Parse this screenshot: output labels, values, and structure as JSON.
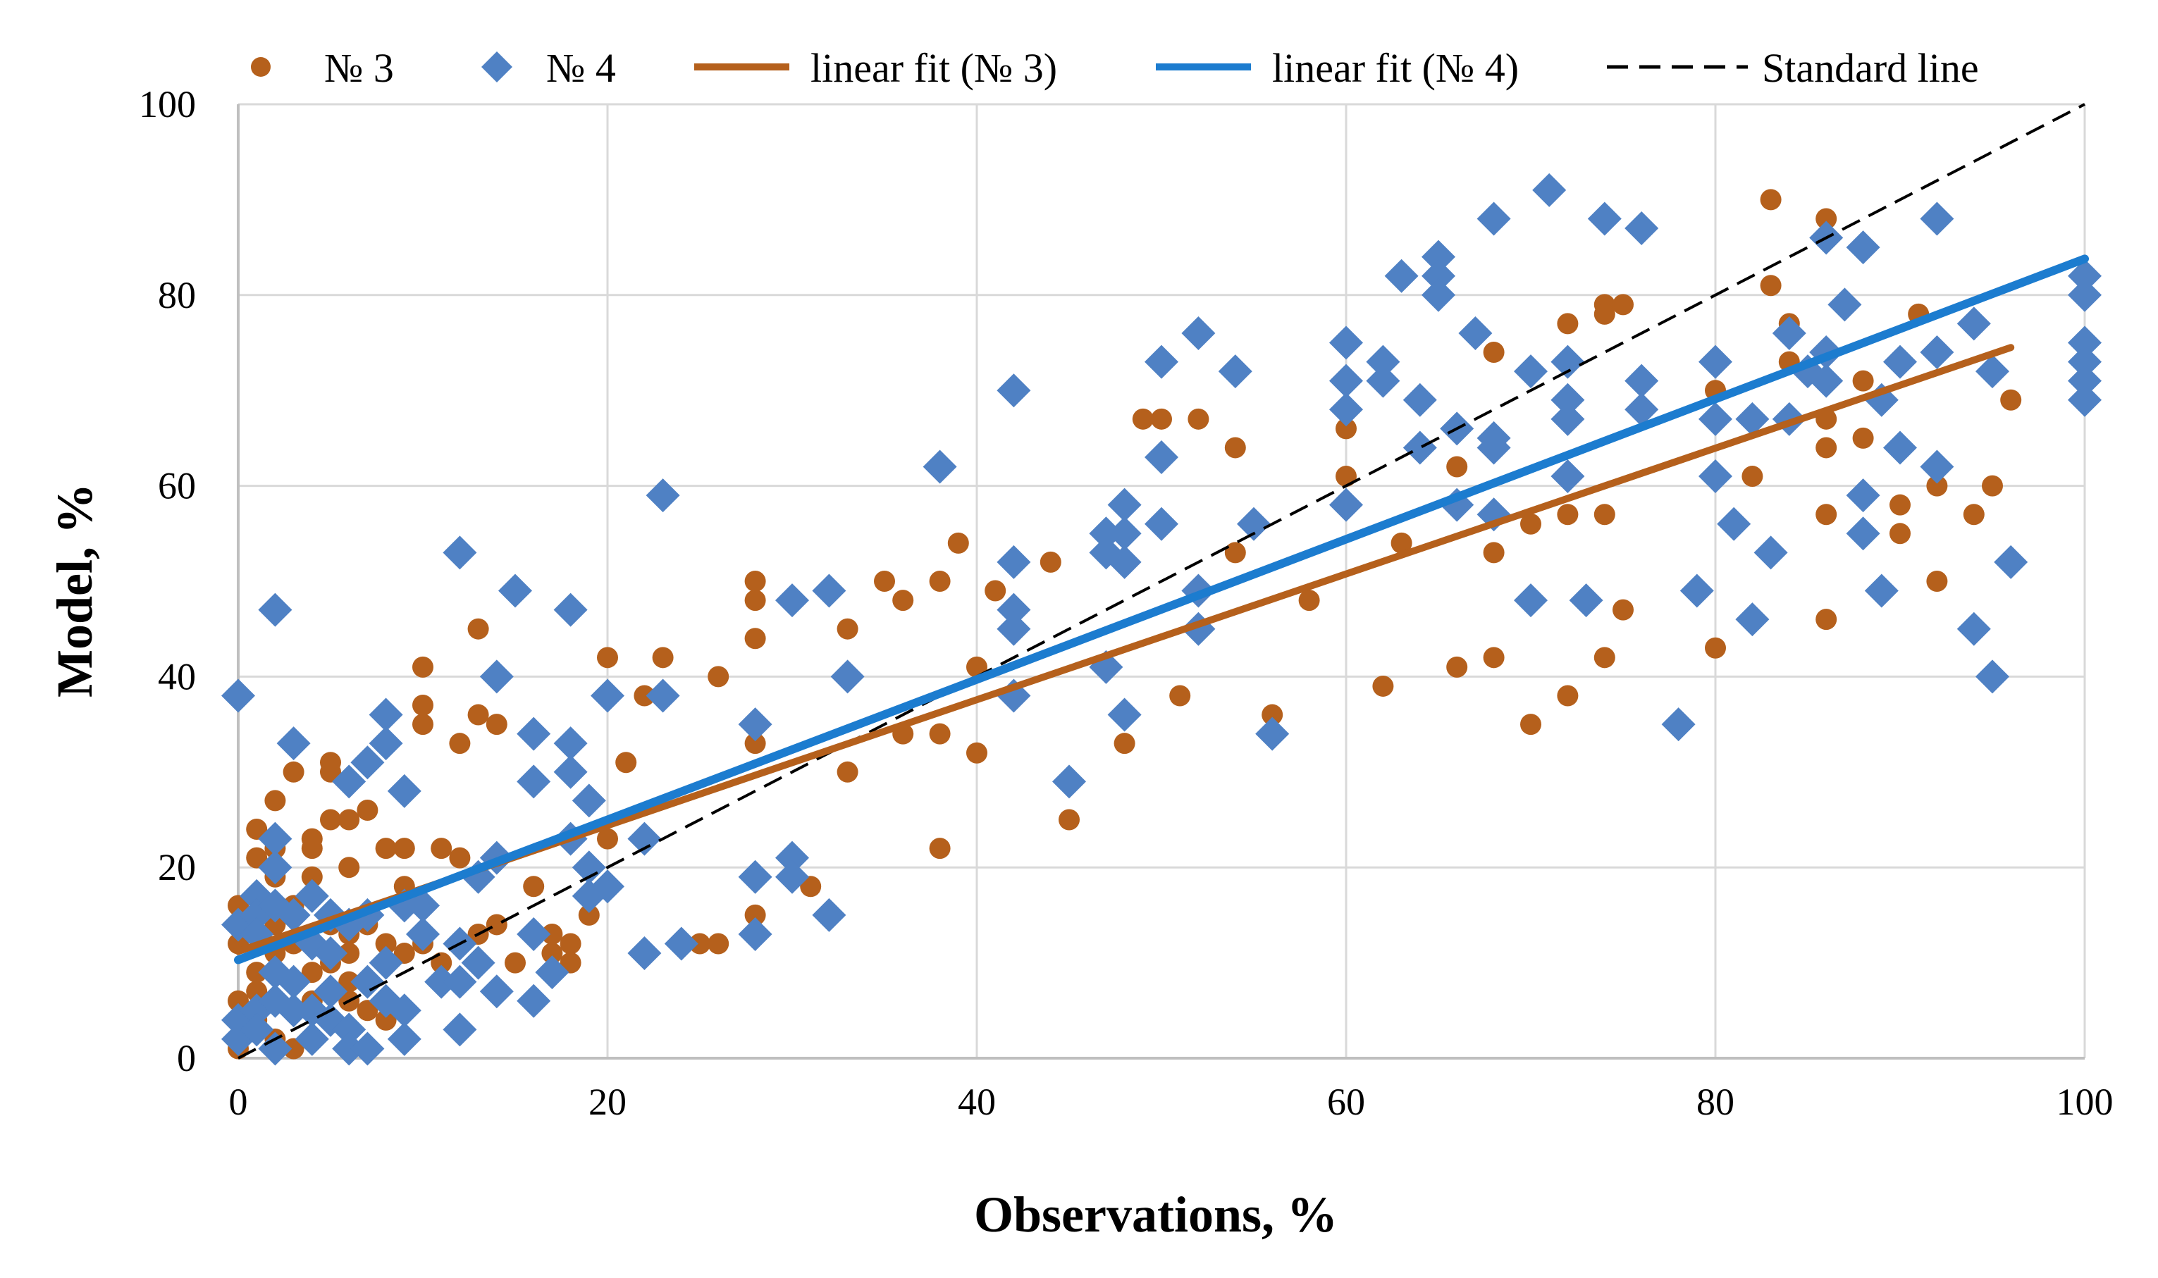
{
  "chart_data": {
    "type": "scatter",
    "title": "",
    "xlabel": "Observations, %",
    "ylabel": "Model, %",
    "xlim": [
      0,
      100
    ],
    "ylim": [
      0,
      100
    ],
    "xticks": [
      0,
      20,
      40,
      60,
      80,
      100
    ],
    "yticks": [
      0,
      20,
      40,
      60,
      80,
      100
    ],
    "grid": true,
    "legend_position": "top",
    "colors": {
      "series3": "#B5601C",
      "series4": "#4F81C4",
      "fit3": "#B5601C",
      "fit4": "#1C7CCF",
      "standard": "#000000",
      "grid": "#D9D9D9",
      "axis": "#BFBFBF"
    },
    "legend": {
      "s3": "№ 3",
      "s4": "№ 4",
      "fit3": "linear fit (№ 3)",
      "fit4": "linear fit (№ 4)",
      "standard": "Standard line"
    },
    "series": [
      {
        "name": "№ 3",
        "marker": "circle",
        "points": [
          [
            0,
            16
          ],
          [
            0,
            12
          ],
          [
            0,
            6
          ],
          [
            0,
            1
          ],
          [
            1,
            24
          ],
          [
            1,
            21
          ],
          [
            1,
            15
          ],
          [
            1,
            9
          ],
          [
            1,
            7
          ],
          [
            1,
            4
          ],
          [
            2,
            27
          ],
          [
            2,
            22
          ],
          [
            2,
            19
          ],
          [
            2,
            14
          ],
          [
            2,
            11
          ],
          [
            2,
            6
          ],
          [
            2,
            2
          ],
          [
            3,
            30
          ],
          [
            3,
            16
          ],
          [
            3,
            12
          ],
          [
            3,
            8
          ],
          [
            3,
            5
          ],
          [
            3,
            1
          ],
          [
            4,
            23
          ],
          [
            4,
            22
          ],
          [
            4,
            19
          ],
          [
            4,
            9
          ],
          [
            4,
            6
          ],
          [
            4,
            2
          ],
          [
            5,
            31
          ],
          [
            5,
            30
          ],
          [
            5,
            25
          ],
          [
            5,
            14
          ],
          [
            5,
            10
          ],
          [
            6,
            25
          ],
          [
            6,
            20
          ],
          [
            6,
            13
          ],
          [
            6,
            11
          ],
          [
            6,
            8
          ],
          [
            6,
            6
          ],
          [
            7,
            26
          ],
          [
            7,
            14
          ],
          [
            7,
            8
          ],
          [
            7,
            5
          ],
          [
            8,
            22
          ],
          [
            8,
            12
          ],
          [
            8,
            4
          ],
          [
            9,
            22
          ],
          [
            9,
            18
          ],
          [
            9,
            11
          ],
          [
            9,
            5
          ],
          [
            10,
            41
          ],
          [
            10,
            37
          ],
          [
            10,
            35
          ],
          [
            10,
            12
          ],
          [
            11,
            22
          ],
          [
            11,
            10
          ],
          [
            12,
            33
          ],
          [
            12,
            21
          ],
          [
            12,
            12
          ],
          [
            13,
            45
          ],
          [
            13,
            36
          ],
          [
            13,
            13
          ],
          [
            14,
            35
          ],
          [
            14,
            14
          ],
          [
            15,
            10
          ],
          [
            16,
            18
          ],
          [
            17,
            13
          ],
          [
            17,
            11
          ],
          [
            18,
            12
          ],
          [
            18,
            10
          ],
          [
            19,
            15
          ],
          [
            20,
            42
          ],
          [
            20,
            23
          ],
          [
            21,
            31
          ],
          [
            22,
            38
          ],
          [
            23,
            42
          ],
          [
            25,
            12
          ],
          [
            26,
            40
          ],
          [
            26,
            12
          ],
          [
            28,
            50
          ],
          [
            28,
            48
          ],
          [
            28,
            44
          ],
          [
            28,
            33
          ],
          [
            28,
            15
          ],
          [
            30,
            48
          ],
          [
            31,
            18
          ],
          [
            33,
            45
          ],
          [
            33,
            30
          ],
          [
            35,
            50
          ],
          [
            36,
            48
          ],
          [
            36,
            34
          ],
          [
            38,
            50
          ],
          [
            38,
            34
          ],
          [
            38,
            22
          ],
          [
            39,
            54
          ],
          [
            40,
            41
          ],
          [
            40,
            32
          ],
          [
            41,
            49
          ],
          [
            44,
            52
          ],
          [
            45,
            25
          ],
          [
            48,
            33
          ],
          [
            49,
            67
          ],
          [
            50,
            67
          ],
          [
            51,
            38
          ],
          [
            52,
            67
          ],
          [
            54,
            64
          ],
          [
            54,
            53
          ],
          [
            56,
            36
          ],
          [
            58,
            48
          ],
          [
            60,
            66
          ],
          [
            60,
            61
          ],
          [
            62,
            39
          ],
          [
            63,
            54
          ],
          [
            66,
            62
          ],
          [
            66,
            41
          ],
          [
            68,
            74
          ],
          [
            68,
            53
          ],
          [
            68,
            42
          ],
          [
            70,
            56
          ],
          [
            70,
            35
          ],
          [
            72,
            77
          ],
          [
            72,
            57
          ],
          [
            72,
            38
          ],
          [
            74,
            79
          ],
          [
            74,
            78
          ],
          [
            74,
            57
          ],
          [
            74,
            42
          ],
          [
            75,
            79
          ],
          [
            75,
            47
          ],
          [
            80,
            70
          ],
          [
            80,
            43
          ],
          [
            82,
            61
          ],
          [
            83,
            90
          ],
          [
            83,
            81
          ],
          [
            84,
            73
          ],
          [
            84,
            77
          ],
          [
            86,
            88
          ],
          [
            86,
            67
          ],
          [
            86,
            64
          ],
          [
            86,
            57
          ],
          [
            86,
            46
          ],
          [
            88,
            71
          ],
          [
            88,
            65
          ],
          [
            90,
            58
          ],
          [
            90,
            55
          ],
          [
            91,
            78
          ],
          [
            92,
            60
          ],
          [
            92,
            50
          ],
          [
            94,
            57
          ],
          [
            95,
            60
          ],
          [
            96,
            69
          ]
        ]
      },
      {
        "name": "№ 4",
        "marker": "diamond",
        "points": [
          [
            0,
            38
          ],
          [
            0,
            14
          ],
          [
            0,
            4
          ],
          [
            0,
            2
          ],
          [
            1,
            17
          ],
          [
            1,
            15
          ],
          [
            1,
            13
          ],
          [
            1,
            5
          ],
          [
            1,
            3
          ],
          [
            2,
            47
          ],
          [
            2,
            23
          ],
          [
            2,
            20
          ],
          [
            2,
            16
          ],
          [
            2,
            9
          ],
          [
            2,
            6
          ],
          [
            2,
            1
          ],
          [
            3,
            33
          ],
          [
            3,
            15
          ],
          [
            3,
            8
          ],
          [
            3,
            5
          ],
          [
            4,
            17
          ],
          [
            4,
            12
          ],
          [
            4,
            5
          ],
          [
            4,
            2
          ],
          [
            5,
            15
          ],
          [
            5,
            11
          ],
          [
            5,
            7
          ],
          [
            5,
            4
          ],
          [
            6,
            29
          ],
          [
            6,
            14
          ],
          [
            6,
            3
          ],
          [
            6,
            1
          ],
          [
            7,
            31
          ],
          [
            7,
            15
          ],
          [
            7,
            8
          ],
          [
            7,
            1
          ],
          [
            8,
            36
          ],
          [
            8,
            33
          ],
          [
            8,
            10
          ],
          [
            8,
            6
          ],
          [
            9,
            28
          ],
          [
            9,
            16
          ],
          [
            9,
            5
          ],
          [
            9,
            2
          ],
          [
            10,
            16
          ],
          [
            10,
            13
          ],
          [
            11,
            8
          ],
          [
            12,
            53
          ],
          [
            12,
            12
          ],
          [
            12,
            8
          ],
          [
            12,
            3
          ],
          [
            13,
            19
          ],
          [
            13,
            10
          ],
          [
            14,
            40
          ],
          [
            14,
            21
          ],
          [
            14,
            7
          ],
          [
            15,
            49
          ],
          [
            16,
            34
          ],
          [
            16,
            29
          ],
          [
            16,
            13
          ],
          [
            16,
            6
          ],
          [
            17,
            9
          ],
          [
            18,
            47
          ],
          [
            18,
            33
          ],
          [
            18,
            30
          ],
          [
            18,
            23
          ],
          [
            19,
            27
          ],
          [
            19,
            20
          ],
          [
            19,
            17
          ],
          [
            20,
            38
          ],
          [
            20,
            18
          ],
          [
            22,
            23
          ],
          [
            22,
            11
          ],
          [
            23,
            59
          ],
          [
            23,
            38
          ],
          [
            24,
            12
          ],
          [
            28,
            35
          ],
          [
            28,
            19
          ],
          [
            28,
            13
          ],
          [
            30,
            48
          ],
          [
            30,
            21
          ],
          [
            30,
            19
          ],
          [
            32,
            49
          ],
          [
            32,
            15
          ],
          [
            33,
            40
          ],
          [
            38,
            62
          ],
          [
            42,
            70
          ],
          [
            42,
            52
          ],
          [
            42,
            47
          ],
          [
            42,
            45
          ],
          [
            42,
            38
          ],
          [
            45,
            29
          ],
          [
            47,
            55
          ],
          [
            47,
            53
          ],
          [
            47,
            41
          ],
          [
            48,
            58
          ],
          [
            48,
            55
          ],
          [
            48,
            52
          ],
          [
            48,
            36
          ],
          [
            50,
            73
          ],
          [
            50,
            63
          ],
          [
            50,
            56
          ],
          [
            52,
            76
          ],
          [
            52,
            49
          ],
          [
            52,
            45
          ],
          [
            54,
            72
          ],
          [
            55,
            56
          ],
          [
            56,
            34
          ],
          [
            60,
            75
          ],
          [
            60,
            71
          ],
          [
            60,
            68
          ],
          [
            60,
            58
          ],
          [
            62,
            73
          ],
          [
            62,
            71
          ],
          [
            63,
            82
          ],
          [
            64,
            69
          ],
          [
            64,
            64
          ],
          [
            65,
            84
          ],
          [
            65,
            82
          ],
          [
            65,
            80
          ],
          [
            66,
            66
          ],
          [
            66,
            58
          ],
          [
            67,
            76
          ],
          [
            68,
            88
          ],
          [
            68,
            65
          ],
          [
            68,
            64
          ],
          [
            68,
            57
          ],
          [
            70,
            72
          ],
          [
            70,
            48
          ],
          [
            71,
            91
          ],
          [
            72,
            73
          ],
          [
            72,
            69
          ],
          [
            72,
            67
          ],
          [
            72,
            61
          ],
          [
            73,
            48
          ],
          [
            74,
            88
          ],
          [
            76,
            87
          ],
          [
            76,
            71
          ],
          [
            76,
            68
          ],
          [
            78,
            35
          ],
          [
            79,
            49
          ],
          [
            80,
            73
          ],
          [
            80,
            67
          ],
          [
            80,
            61
          ],
          [
            81,
            56
          ],
          [
            82,
            67
          ],
          [
            82,
            46
          ],
          [
            83,
            53
          ],
          [
            84,
            76
          ],
          [
            84,
            67
          ],
          [
            85,
            72
          ],
          [
            86,
            86
          ],
          [
            86,
            74
          ],
          [
            86,
            71
          ],
          [
            87,
            79
          ],
          [
            88,
            85
          ],
          [
            88,
            59
          ],
          [
            88,
            55
          ],
          [
            89,
            69
          ],
          [
            89,
            49
          ],
          [
            90,
            73
          ],
          [
            90,
            64
          ],
          [
            92,
            88
          ],
          [
            92,
            74
          ],
          [
            92,
            62
          ],
          [
            94,
            77
          ],
          [
            94,
            45
          ],
          [
            95,
            72
          ],
          [
            95,
            40
          ],
          [
            96,
            52
          ],
          [
            100,
            82
          ],
          [
            100,
            80
          ],
          [
            100,
            75
          ],
          [
            100,
            73
          ],
          [
            100,
            71
          ],
          [
            100,
            69
          ]
        ]
      }
    ],
    "fits": [
      {
        "name": "linear fit (№ 3)",
        "x": [
          0,
          96
        ],
        "y": [
          11.2,
          74.5
        ]
      },
      {
        "name": "linear fit (№ 4)",
        "x": [
          0,
          100
        ],
        "y": [
          10.3,
          83.8
        ]
      }
    ],
    "standard_line": {
      "name": "Standard line",
      "x": [
        0,
        100
      ],
      "y": [
        0,
        100
      ]
    }
  }
}
